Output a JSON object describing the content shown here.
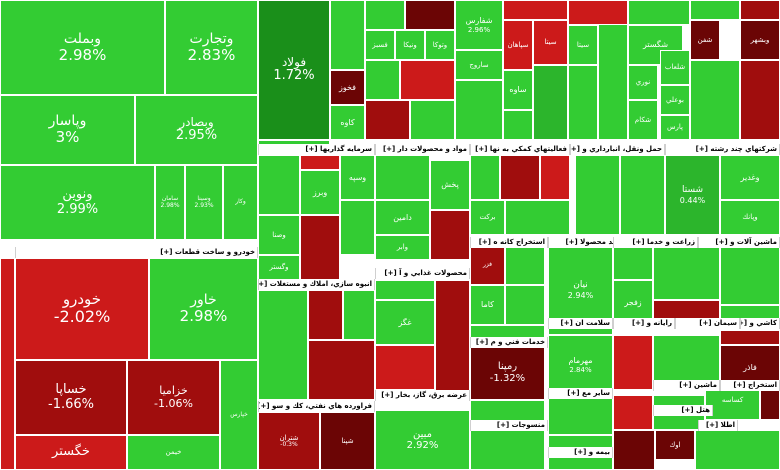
{
  "colors": {
    "pos_light": "#33cc33",
    "pos_mid": "#2cb52c",
    "pos_dark": "#1a8f1a",
    "neg_light": "#cc1a1a",
    "neg_mid": "#a00d0d",
    "neg_dark": "#6b0505",
    "neutral": "#7a7a7a"
  },
  "sector_headers": [
    {
      "id": "auto",
      "label": "خودرو و ساخت قطعات [+]"
    },
    {
      "id": "capital",
      "label": "سرمايه گذاريها [+]"
    },
    {
      "id": "chem",
      "label": "مواد و محصولات دار [+]"
    },
    {
      "id": "support",
      "label": "فعاليتهاي كمكي به نها [+]"
    },
    {
      "id": "transport",
      "label": "حمل ونقل، انبارداري و [+]"
    },
    {
      "id": "multi",
      "label": "شركتهاي چند رشته [+]"
    },
    {
      "id": "food",
      "label": "محصولات غذايي و آ [+]"
    },
    {
      "id": "mining",
      "label": "استخراج كانه ه [+]"
    },
    {
      "id": "electric",
      "label": "توليد محصولا [+]"
    },
    {
      "id": "farming",
      "label": "زراعت و خدما [+]"
    },
    {
      "id": "machinery",
      "label": "ماشين آلات و [+]"
    },
    {
      "id": "construction",
      "label": "انبوه سازي، املاك و مستغلات [+]"
    },
    {
      "id": "engineering",
      "label": "خدمات فني و م [+]"
    },
    {
      "id": "health",
      "label": "سلامت ان [+]"
    },
    {
      "id": "computer",
      "label": "رايانه و [+]"
    },
    {
      "id": "ceramic",
      "label": "كاشي و [+]"
    },
    {
      "id": "cement",
      "label": "سيمان [+]"
    },
    {
      "id": "oilprod",
      "label": "فراورده هاي نفتي، كك و سو [+]"
    },
    {
      "id": "utility",
      "label": "عرضه برق، گاز، بخار [+]"
    },
    {
      "id": "textile",
      "label": "منسوجات [+]"
    },
    {
      "id": "other_mine",
      "label": "ساير مع [+]"
    },
    {
      "id": "insurance",
      "label": "بيمه و [+]"
    },
    {
      "id": "otherext",
      "label": "استخراج [+]"
    },
    {
      "id": "machines2",
      "label": "ماشين [+]"
    },
    {
      "id": "hotel",
      "label": "هتل [+]"
    },
    {
      "id": "stone",
      "label": "اطلا [+]"
    }
  ],
  "tiles": [
    {
      "name": "وبملت",
      "pct": "2.98%",
      "shade": "pos_light"
    },
    {
      "name": "وتجارت",
      "pct": "2.83%",
      "shade": "pos_light"
    },
    {
      "name": "وپاسار",
      "pct": "3%",
      "shade": "pos_light"
    },
    {
      "name": "وبصادر",
      "pct": "2.95%",
      "shade": "pos_light"
    },
    {
      "name": "ونوين",
      "pct": "2.99%",
      "shade": "pos_light"
    },
    {
      "name": "سامان",
      "pct": "2.98%",
      "shade": "pos_light"
    },
    {
      "name": "وسينا",
      "pct": "2.93%",
      "shade": "pos_light"
    },
    {
      "name": "وكار",
      "pct": "",
      "shade": "pos_light"
    },
    {
      "name": "خودرو",
      "pct": "-2.02%",
      "shade": "neg_light"
    },
    {
      "name": "خاور",
      "pct": "2.98%",
      "shade": "pos_light"
    },
    {
      "name": "خساپا",
      "pct": "-1.66%",
      "shade": "neg_mid"
    },
    {
      "name": "خزاميا",
      "pct": "-1.06%",
      "shade": "neg_mid"
    },
    {
      "name": "خگستر",
      "pct": "",
      "shade": "neg_light"
    },
    {
      "name": "خپارس",
      "pct": "",
      "shade": "pos_light"
    },
    {
      "name": "خيمن",
      "pct": "",
      "shade": "pos_light"
    },
    {
      "name": "فولاد",
      "pct": "1.72%",
      "shade": "pos_dark"
    },
    {
      "name": "فخوز",
      "pct": "",
      "shade": "neg_dark"
    },
    {
      "name": "كاوه",
      "pct": "",
      "shade": "pos_light"
    },
    {
      "name": "فسبز",
      "pct": "",
      "shade": "pos_light"
    },
    {
      "name": "ونيكا",
      "pct": "",
      "shade": "pos_light"
    },
    {
      "name": "وتوكا",
      "pct": "",
      "shade": "pos_light"
    },
    {
      "name": "شفارس",
      "pct": "2.96%",
      "shade": "pos_light"
    },
    {
      "name": "ساروج",
      "pct": "",
      "shade": "pos_light"
    },
    {
      "name": "سپاهان",
      "pct": "",
      "shade": "neg_light"
    },
    {
      "name": "ساوه",
      "pct": "",
      "shade": "pos_light"
    },
    {
      "name": "سيتا",
      "pct": "",
      "shade": "neg_light"
    },
    {
      "name": "سيتا",
      "pct": "",
      "shade": "pos_light"
    },
    {
      "name": "شگستر",
      "pct": "",
      "shade": "pos_light"
    },
    {
      "name": "شفن",
      "pct": "",
      "shade": "neg_dark"
    },
    {
      "name": "شلعاب",
      "pct": "",
      "shade": "pos_light"
    },
    {
      "name": "نوري",
      "pct": "",
      "shade": "pos_light"
    },
    {
      "name": "بوعلي",
      "pct": "",
      "shade": "pos_light"
    },
    {
      "name": "شكام",
      "pct": "",
      "shade": "pos_light"
    },
    {
      "name": "پارس",
      "pct": "",
      "shade": "pos_light"
    },
    {
      "name": "وبشهر",
      "pct": "",
      "shade": "neg_dark"
    },
    {
      "name": "شستا",
      "pct": "0.44%",
      "shade": "pos_mid"
    },
    {
      "name": "وغدير",
      "pct": "",
      "shade": "pos_light"
    },
    {
      "name": "وپانك",
      "pct": "",
      "shade": "pos_light"
    },
    {
      "name": "وسپه",
      "pct": "",
      "shade": "pos_light"
    },
    {
      "name": "وبرز",
      "pct": "",
      "shade": "pos_light"
    },
    {
      "name": "وصنا",
      "pct": "",
      "shade": "pos_light"
    },
    {
      "name": "وگستر",
      "pct": "",
      "shade": "pos_light"
    },
    {
      "name": "پخش",
      "pct": "",
      "shade": "pos_light"
    },
    {
      "name": "دامين",
      "pr": "",
      "pct": "",
      "shade": "pos_light"
    },
    {
      "name": "وابر",
      "pct": "",
      "shade": "pos_light"
    },
    {
      "name": "بركت",
      "pct": "",
      "shade": "pos_light"
    },
    {
      "name": "كاما",
      "pct": "",
      "shade": "pos_light"
    },
    {
      "name": "فزر",
      "pct": "",
      "shade": "neg_mid"
    },
    {
      "name": "نيان",
      "pct": "2.94%",
      "shade": "pos_light"
    },
    {
      "name": "زفجر",
      "pct": "",
      "shade": "pos_light"
    },
    {
      "name": "غگز",
      "pct": "",
      "shade": "pos_light"
    },
    {
      "name": "رمپنا",
      "pct": "-1.32%",
      "shade": "neg_dark"
    },
    {
      "name": "مهرمام",
      "pct": "2.84%",
      "shade": "pos_light"
    },
    {
      "name": "فاذر",
      "pct": "",
      "shade": "neg_dark"
    },
    {
      "name": "شتران",
      "pct": "-0.3%",
      "shade": "neg_mid"
    },
    {
      "name": "مبين",
      "pct": "2.92%",
      "shade": "pos_light"
    },
    {
      "name": "كساسه",
      "pct": "",
      "shade": "pos_light"
    },
    {
      "name": "اوك",
      "pct": "",
      "shade": "neg_dark"
    },
    {
      "name": "شپنا",
      "pct": "",
      "shade": "neg_dark"
    }
  ]
}
